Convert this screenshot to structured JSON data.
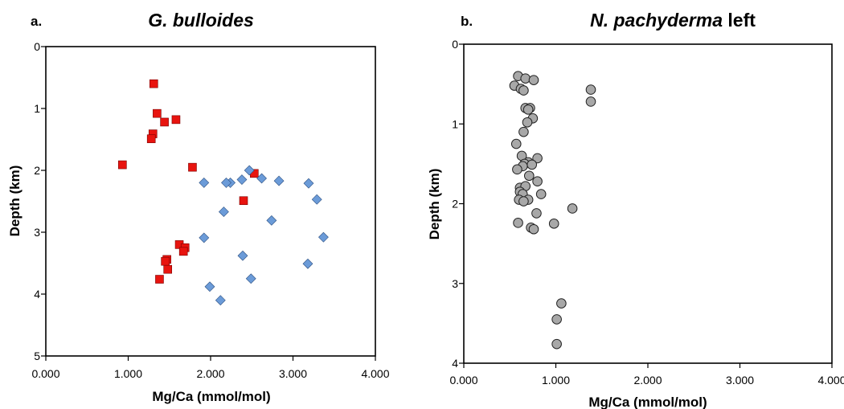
{
  "chart_data": [
    {
      "type": "scatter",
      "panel_label": "a.",
      "title_italic": "G. bulloides",
      "title_rest": "",
      "xlabel": "Mg/Ca (mmol/mol)",
      "ylabel": "Depth (km)",
      "xlim": [
        0,
        4
      ],
      "ylim": [
        0,
        5
      ],
      "y_inverted": true,
      "x_ticks": [
        "0.000",
        "1.000",
        "2.000",
        "3.000",
        "4.000"
      ],
      "x_tick_values": [
        0,
        1,
        2,
        3,
        4
      ],
      "y_ticks": [
        "0",
        "1",
        "2",
        "3",
        "4",
        "5"
      ],
      "y_tick_values": [
        0,
        1,
        2,
        3,
        4,
        5
      ],
      "grid": false,
      "series": [
        {
          "marker": "square",
          "color": "#e8140f",
          "points": [
            [
              1.31,
              0.6
            ],
            [
              1.35,
              1.08
            ],
            [
              1.44,
              1.22
            ],
            [
              1.58,
              1.18
            ],
            [
              1.3,
              1.41
            ],
            [
              1.28,
              1.49
            ],
            [
              0.93,
              1.91
            ],
            [
              1.78,
              1.95
            ],
            [
              2.53,
              2.05
            ],
            [
              2.4,
              2.49
            ],
            [
              1.62,
              3.2
            ],
            [
              1.69,
              3.25
            ],
            [
              1.67,
              3.31
            ],
            [
              1.47,
              3.44
            ],
            [
              1.45,
              3.47
            ],
            [
              1.48,
              3.6
            ],
            [
              1.38,
              3.76
            ]
          ]
        },
        {
          "marker": "diamond",
          "color": "#6b9bd8",
          "points": [
            [
              2.47,
              2.0
            ],
            [
              2.62,
              2.13
            ],
            [
              2.83,
              2.17
            ],
            [
              2.38,
              2.15
            ],
            [
              2.24,
              2.2
            ],
            [
              2.19,
              2.2
            ],
            [
              1.92,
              2.2
            ],
            [
              3.19,
              2.21
            ],
            [
              3.29,
              2.47
            ],
            [
              2.16,
              2.67
            ],
            [
              2.74,
              2.81
            ],
            [
              3.37,
              3.08
            ],
            [
              1.92,
              3.09
            ],
            [
              2.39,
              3.38
            ],
            [
              3.18,
              3.51
            ],
            [
              2.49,
              3.75
            ],
            [
              1.99,
              3.88
            ],
            [
              2.12,
              4.1
            ]
          ]
        }
      ]
    },
    {
      "type": "scatter",
      "panel_label": "b.",
      "title_italic": "N. pachyderma",
      "title_rest": " left",
      "xlabel": "Mg/Ca (mmol/mol)",
      "ylabel": "Depth (km)",
      "xlim": [
        0,
        4
      ],
      "ylim": [
        0,
        4
      ],
      "y_inverted": true,
      "x_ticks": [
        "0.000",
        "1.000",
        "2.000",
        "3.000",
        "4.000"
      ],
      "x_tick_values": [
        0,
        1,
        2,
        3,
        4
      ],
      "y_ticks": [
        "0",
        "1",
        "2",
        "3",
        "4"
      ],
      "y_tick_values": [
        0,
        1,
        2,
        3,
        4
      ],
      "grid": false,
      "series": [
        {
          "marker": "circle",
          "color": "#a8a8a8",
          "points": [
            [
              0.59,
              0.4
            ],
            [
              0.67,
              0.43
            ],
            [
              0.76,
              0.45
            ],
            [
              0.55,
              0.52
            ],
            [
              0.62,
              0.56
            ],
            [
              0.65,
              0.58
            ],
            [
              1.38,
              0.57
            ],
            [
              1.38,
              0.72
            ],
            [
              0.67,
              0.8
            ],
            [
              0.72,
              0.8
            ],
            [
              0.7,
              0.82
            ],
            [
              0.75,
              0.93
            ],
            [
              0.69,
              0.98
            ],
            [
              0.65,
              1.1
            ],
            [
              0.57,
              1.25
            ],
            [
              0.63,
              1.4
            ],
            [
              0.8,
              1.43
            ],
            [
              0.7,
              1.48
            ],
            [
              0.66,
              1.5
            ],
            [
              0.74,
              1.51
            ],
            [
              0.64,
              1.53
            ],
            [
              0.58,
              1.57
            ],
            [
              0.71,
              1.65
            ],
            [
              0.8,
              1.72
            ],
            [
              0.61,
              1.8
            ],
            [
              0.67,
              1.78
            ],
            [
              0.61,
              1.85
            ],
            [
              0.64,
              1.88
            ],
            [
              0.84,
              1.88
            ],
            [
              0.6,
              1.95
            ],
            [
              0.7,
              1.95
            ],
            [
              0.65,
              1.97
            ],
            [
              1.18,
              2.06
            ],
            [
              0.79,
              2.12
            ],
            [
              0.98,
              2.25
            ],
            [
              0.59,
              2.24
            ],
            [
              0.73,
              2.3
            ],
            [
              0.76,
              2.32
            ],
            [
              1.06,
              3.25
            ],
            [
              1.01,
              3.45
            ],
            [
              1.01,
              3.76
            ]
          ]
        }
      ]
    }
  ]
}
